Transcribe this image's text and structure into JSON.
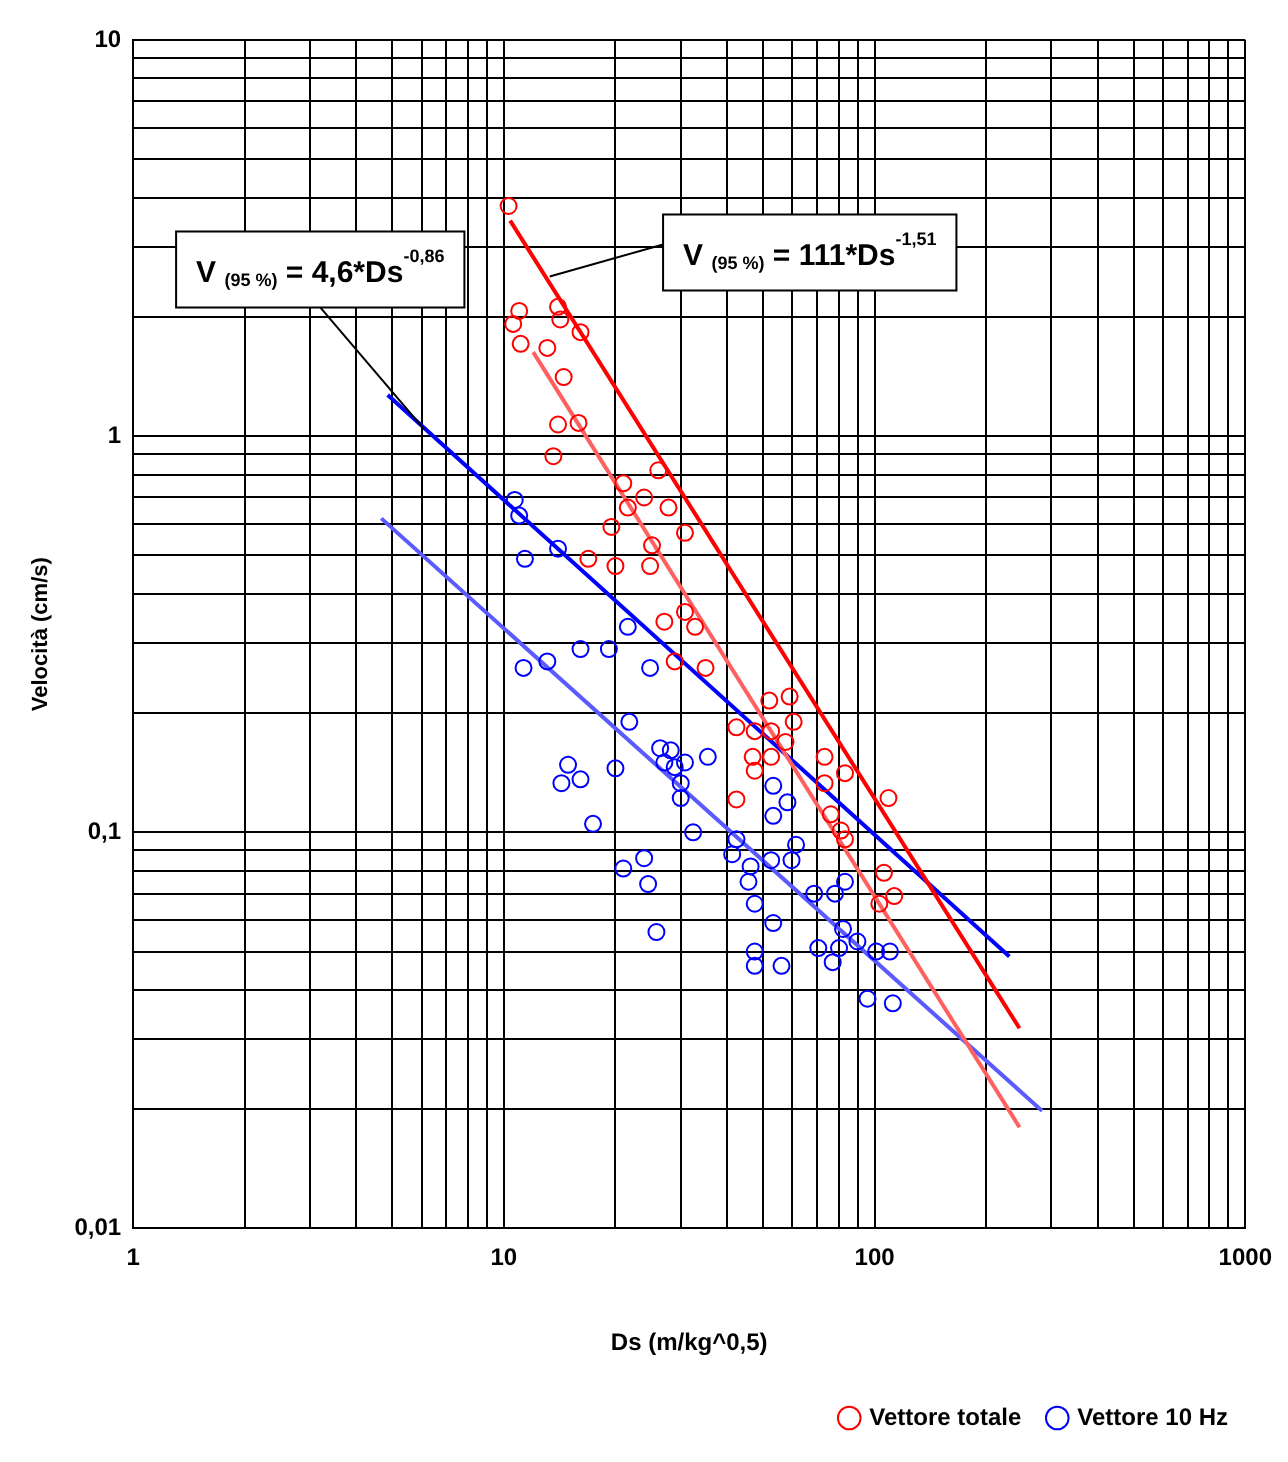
{
  "chart_data": {
    "type": "scatter",
    "xlabel": "Ds (m/kg^0,5)",
    "ylabel": "Velocità (cm/s)",
    "log": "xy",
    "grid": true,
    "marker": "circle",
    "legend": "bottom right",
    "xlim": [
      1,
      1000
    ],
    "ylim": [
      0.01,
      10
    ],
    "xticks": [
      1,
      {
        "value": 2,
        "label": null
      },
      {
        "value": 3,
        "label": null
      },
      {
        "value": 4,
        "label": null
      },
      {
        "value": 5,
        "label": null
      },
      {
        "value": 6,
        "label": null
      },
      {
        "value": 7,
        "label": null
      },
      {
        "value": 8,
        "label": null
      },
      {
        "value": 9,
        "label": null
      },
      10,
      {
        "value": 20,
        "label": null
      },
      {
        "value": 30,
        "label": null
      },
      {
        "value": 40,
        "label": null
      },
      {
        "value": 50,
        "label": null
      },
      {
        "value": 60,
        "label": null
      },
      {
        "value": 70,
        "label": null
      },
      {
        "value": 80,
        "label": null
      },
      {
        "value": 90,
        "label": null
      },
      100,
      {
        "value": 200,
        "label": null
      },
      {
        "value": 300,
        "label": null
      },
      {
        "value": 400,
        "label": null
      },
      {
        "value": 500,
        "label": null
      },
      {
        "value": 600,
        "label": null
      },
      {
        "value": 700,
        "label": null
      },
      {
        "value": 800,
        "label": null
      },
      {
        "value": 900,
        "label": null
      },
      1000
    ],
    "yticks": [
      {
        "value": 0.01,
        "label": "0,01"
      },
      {
        "value": 0.02,
        "label": null
      },
      {
        "value": 0.03,
        "label": null
      },
      {
        "value": 0.04,
        "label": null
      },
      {
        "value": 0.05,
        "label": null
      },
      {
        "value": 0.06,
        "label": null
      },
      {
        "value": 0.07,
        "label": null
      },
      {
        "value": 0.08,
        "label": null
      },
      {
        "value": 0.09,
        "label": null
      },
      {
        "value": 0.1,
        "label": "0,1"
      },
      {
        "value": 0.2,
        "label": null
      },
      {
        "value": 0.3,
        "label": null
      },
      {
        "value": 0.4,
        "label": null
      },
      {
        "value": 0.5,
        "label": null
      },
      {
        "value": 0.6,
        "label": null
      },
      {
        "value": 0.7,
        "label": null
      },
      {
        "value": 0.8,
        "label": null
      },
      {
        "value": 0.9,
        "label": null
      },
      1,
      {
        "value": 2,
        "label": null
      },
      {
        "value": 3,
        "label": null
      },
      {
        "value": 4,
        "label": null
      },
      {
        "value": 5,
        "label": null
      },
      {
        "value": 6,
        "label": null
      },
      {
        "value": 7,
        "label": null
      },
      {
        "value": 8,
        "label": null
      },
      {
        "value": 9,
        "label": null
      },
      10
    ],
    "annotations": [
      {
        "text": "V $_{(95 %)}$ = 4,6*Ds$^{-0,86}$",
        "x": 6.1,
        "y": 1.04
      },
      {
        "text": "V $_{(95 %)}$ = 111*Ds$^{-1,51}$",
        "x": 13.3,
        "y": 2.53
      }
    ],
    "series": [
      {
        "name": "Vettore totale",
        "color": "#ff0000",
        "x": [
          10.3,
          11.0,
          14.0,
          10.6,
          14.2,
          16.1,
          11.1,
          13.1,
          14.5,
          14.0,
          15.9,
          13.6,
          26.1,
          21.0,
          23.9,
          21.6,
          27.8,
          19.5,
          30.8,
          25.1,
          16.9,
          20.0,
          24.8,
          27.1,
          30.8,
          32.8,
          28.9,
          35.0,
          52.0,
          59.0,
          42.4,
          47.5,
          52.6,
          60.5,
          57.5,
          46.9,
          52.6,
          73.3,
          83.2,
          73.3,
          109,
          47.5,
          42.4,
          76.2,
          81.1,
          83.2,
          106,
          113,
          103
        ],
        "values": [
          3.81,
          2.07,
          2.12,
          1.92,
          1.97,
          1.83,
          1.71,
          1.67,
          1.41,
          1.07,
          1.08,
          0.89,
          0.82,
          0.76,
          0.7,
          0.66,
          0.66,
          0.59,
          0.57,
          0.53,
          0.49,
          0.47,
          0.47,
          0.34,
          0.36,
          0.33,
          0.27,
          0.26,
          0.215,
          0.22,
          0.184,
          0.18,
          0.18,
          0.19,
          0.169,
          0.155,
          0.155,
          0.155,
          0.141,
          0.133,
          0.122,
          0.143,
          0.121,
          0.111,
          0.101,
          0.096,
          0.079,
          0.069,
          0.066
        ]
      },
      {
        "name": "Vettore 10 Hz",
        "color": "#0000ff",
        "x": [
          10.7,
          11.0,
          14.0,
          11.4,
          21.6,
          16.1,
          19.2,
          11.3,
          13.1,
          24.8,
          21.8,
          14.9,
          14.3,
          16.1,
          20.0,
          26.4,
          28.2,
          27.1,
          28.9,
          30.8,
          35.5,
          30.0,
          30.0,
          17.4,
          32.4,
          23.9,
          21.0,
          24.5,
          25.8,
          42.4,
          41.3,
          46.3,
          45.7,
          47.5,
          47.5,
          47.5,
          53.3,
          53.3,
          58.2,
          61.4,
          59.7,
          52.6,
          53.3,
          68.7,
          78.2,
          83.2,
          82.2,
          80.2,
          89.9,
          101,
          110,
          70.5,
          77.1,
          56.1,
          95.7,
          112
        ],
        "values": [
          0.69,
          0.63,
          0.52,
          0.49,
          0.33,
          0.29,
          0.29,
          0.26,
          0.27,
          0.26,
          0.19,
          0.148,
          0.133,
          0.136,
          0.145,
          0.163,
          0.161,
          0.15,
          0.146,
          0.15,
          0.155,
          0.133,
          0.122,
          0.105,
          0.1,
          0.086,
          0.081,
          0.074,
          0.056,
          0.096,
          0.088,
          0.082,
          0.075,
          0.066,
          0.05,
          0.046,
          0.131,
          0.11,
          0.119,
          0.093,
          0.085,
          0.085,
          0.059,
          0.07,
          0.07,
          0.075,
          0.057,
          0.051,
          0.053,
          0.05,
          0.05,
          0.051,
          0.047,
          0.046,
          0.038,
          0.037
        ]
      },
      {
        "type": "line",
        "marker": "none",
        "color": "#ff0000",
        "x": [
          10.4,
          246
        ],
        "values": [
          3.5,
          0.032
        ]
      },
      {
        "type": "line",
        "marker": "none",
        "color": "#ff6060",
        "x": [
          12.0,
          246
        ],
        "values": [
          1.63,
          0.018
        ]
      },
      {
        "type": "line",
        "marker": "none",
        "color": "#0000ff",
        "x": [
          4.86,
          231
        ],
        "values": [
          1.27,
          0.0486
        ]
      },
      {
        "type": "line",
        "marker": "none",
        "color": "#5a5aff",
        "x": [
          4.67,
          283
        ],
        "values": [
          0.62,
          0.0198
        ]
      }
    ]
  }
}
